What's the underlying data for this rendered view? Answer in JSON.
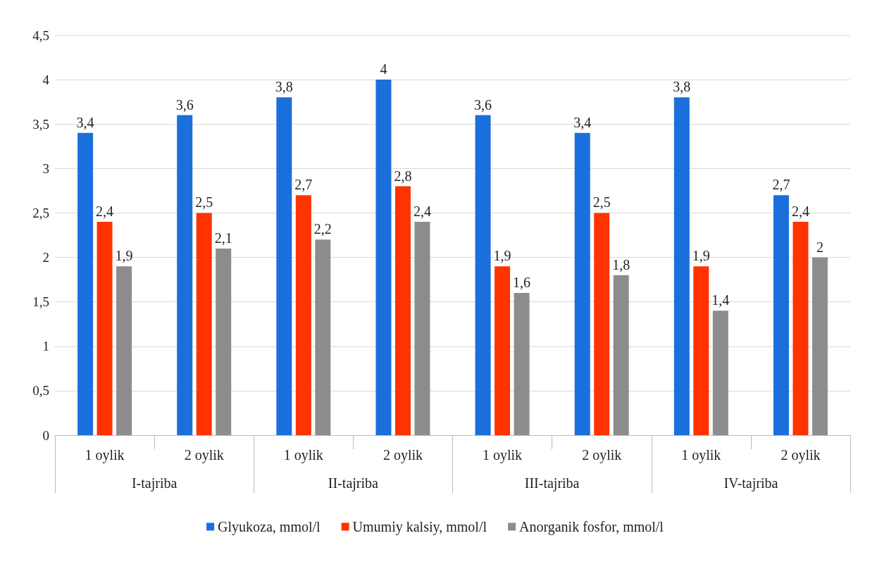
{
  "chart_data": {
    "type": "bar",
    "categories": [
      "1 oylik",
      "2 oylik",
      "1 oylik",
      "2 oylik",
      "1 oylik",
      "2 oylik",
      "1 oylik",
      "2 oylik"
    ],
    "annotations": [
      "I-tajriba",
      "II-tajriba",
      "III-tajriba",
      "IV-tajriba"
    ],
    "series": [
      {
        "name": "Glyukoza, mmol/l",
        "color": "#1a6fdc",
        "values": [
          3.4,
          3.6,
          3.8,
          4,
          3.6,
          3.4,
          3.8,
          2.7
        ],
        "value_labels": [
          "3,4",
          "3,6",
          "3,8",
          "4",
          "3,6",
          "3,4",
          "3,8",
          "2,7"
        ]
      },
      {
        "name": "Umumiy kalsiy, mmol/l",
        "color": "#ff3300",
        "values": [
          2.4,
          2.5,
          2.7,
          2.8,
          1.9,
          2.5,
          1.9,
          2.4
        ],
        "value_labels": [
          "2,4",
          "2,5",
          "2,7",
          "2,8",
          "1,9",
          "2,5",
          "1,9",
          "2,4"
        ]
      },
      {
        "name": "Anorganik fosfor, mmol/l",
        "color": "#8c8c8c",
        "values": [
          1.9,
          2.1,
          2.2,
          2.4,
          1.6,
          1.8,
          1.4,
          2
        ],
        "value_labels": [
          "1,9",
          "2,1",
          "2,2",
          "2,4",
          "1,6",
          "1,8",
          "1,4",
          "2"
        ]
      }
    ],
    "ylim": [
      0,
      4.5
    ],
    "yticks": [
      0,
      {
        "value": 0.5,
        "label": "0,5"
      },
      1,
      {
        "value": 1.5,
        "label": "1,5"
      },
      2,
      {
        "value": 2.5,
        "label": "2,5"
      },
      3,
      {
        "value": 3.5,
        "label": "3,5"
      },
      4,
      {
        "value": 4.5,
        "label": "4,5"
      }
    ],
    "grid": "y",
    "legend": "bottom"
  }
}
